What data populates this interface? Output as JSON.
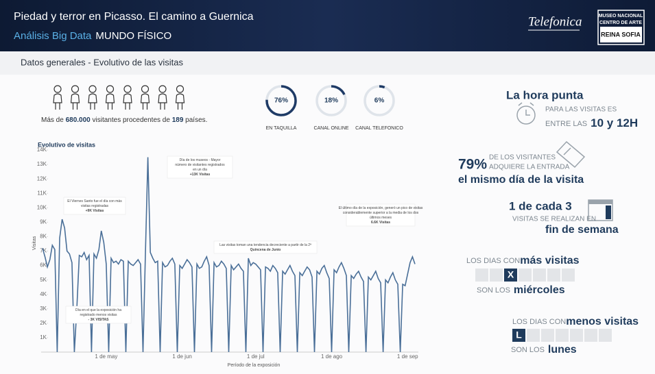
{
  "header": {
    "title": "Piedad y terror en Picasso. El camino a Guernica",
    "subtitle_label": "Análisis Big Data",
    "subtitle": "MUNDO FÍSICO",
    "logo_left": "Telefonica",
    "logo_right": [
      "MUSEO NACIONAL",
      "CENTRO DE ARTE",
      "REINA SOFIA"
    ]
  },
  "section_title": "Datos generales -  Evolutivo de las visitas",
  "visitors": [
    "Más de ",
    "680.000",
    " visitantes procedentes de ",
    "189",
    " países."
  ],
  "chart_data": [
    {
      "type": "line",
      "title": "Evolutivo de visitas",
      "y_label": "Visitas",
      "x_label": "Período de la exposición",
      "color": "#4a6f98",
      "grid": false,
      "ylim": [
        0,
        14000
      ],
      "yticks": [
        {
          "value": 1000,
          "label": "1K"
        },
        {
          "value": 2000,
          "label": "2K"
        },
        {
          "value": 3000,
          "label": "3K"
        },
        {
          "value": 4000,
          "label": "4K"
        },
        {
          "value": 5000,
          "label": "5K"
        },
        {
          "value": 6000,
          "label": "6K"
        },
        {
          "value": 7000,
          "label": "7K"
        },
        {
          "value": 8000,
          "label": "8K"
        },
        {
          "value": 9000,
          "label": "9K"
        },
        {
          "value": 10000,
          "label": "10K"
        },
        {
          "value": 11000,
          "label": "11K"
        },
        {
          "value": 12000,
          "label": "12K"
        },
        {
          "value": 13000,
          "label": "13K"
        },
        {
          "value": 14000,
          "label": "14K"
        }
      ],
      "categories": [
        null,
        null,
        null,
        null,
        null,
        null,
        null,
        null,
        null,
        null,
        null,
        null,
        null,
        null,
        null,
        null,
        null,
        null,
        null,
        null,
        null,
        null,
        null,
        null,
        null,
        null,
        "1 de may",
        null,
        null,
        null,
        null,
        null,
        null,
        null,
        null,
        null,
        null,
        null,
        null,
        null,
        null,
        null,
        null,
        null,
        null,
        null,
        null,
        null,
        null,
        null,
        null,
        null,
        null,
        null,
        null,
        null,
        null,
        "1 de jun",
        null,
        null,
        null,
        null,
        null,
        null,
        null,
        null,
        null,
        null,
        null,
        null,
        null,
        null,
        null,
        null,
        null,
        null,
        null,
        null,
        null,
        null,
        null,
        null,
        null,
        null,
        null,
        null,
        null,
        "1 de jul",
        null,
        null,
        null,
        null,
        null,
        null,
        null,
        null,
        null,
        null,
        null,
        null,
        null,
        null,
        null,
        null,
        null,
        null,
        null,
        null,
        null,
        null,
        null,
        null,
        null,
        null,
        null,
        null,
        null,
        null,
        "1 de ago",
        null,
        null,
        null,
        null,
        null,
        null,
        null,
        null,
        null,
        null,
        null,
        null,
        null,
        null,
        null,
        null,
        null,
        null,
        null,
        null,
        null,
        null,
        null,
        null,
        null,
        null,
        null,
        null,
        null,
        null,
        "1 de sep",
        null,
        null,
        null
      ],
      "values": [
        7200,
        6600,
        5900,
        6400,
        7400,
        7100,
        0,
        7900,
        9200,
        8600,
        7000,
        6800,
        6200,
        0,
        3000,
        6700,
        6600,
        6900,
        6400,
        6700,
        0,
        6800,
        6500,
        7100,
        8400,
        7600,
        6100,
        0,
        6500,
        6200,
        6300,
        6100,
        6400,
        6300,
        0,
        6300,
        6100,
        6000,
        6200,
        6400,
        6100,
        0,
        6800,
        13500,
        6900,
        6500,
        6200,
        6300,
        0,
        6200,
        5900,
        6000,
        6300,
        6500,
        6100,
        0,
        6000,
        5800,
        6100,
        6400,
        6200,
        5900,
        0,
        6100,
        5800,
        5900,
        6300,
        6600,
        6000,
        0,
        6200,
        5900,
        6000,
        6300,
        6100,
        5800,
        0,
        6000,
        5700,
        5900,
        6100,
        5800,
        5600,
        0,
        6500,
        6000,
        6200,
        6100,
        5900,
        5700,
        0,
        5900,
        5800,
        5600,
        6000,
        5800,
        5500,
        0,
        5600,
        5400,
        5700,
        6000,
        5600,
        5300,
        0,
        5500,
        5300,
        5600,
        5900,
        5700,
        5200,
        0,
        5600,
        5400,
        5800,
        6000,
        5500,
        5100,
        0,
        5700,
        5500,
        5900,
        6200,
        5800,
        5300,
        0,
        5300,
        5100,
        5400,
        5600,
        5200,
        4900,
        0,
        5200,
        5000,
        5300,
        5600,
        5100,
        4800,
        0,
        5000,
        4800,
        5200,
        5500,
        5000,
        4700,
        0,
        4700,
        4600,
        5400,
        6200,
        6600,
        6100
      ],
      "annotations": [
        [
          "El Viernes Santo fue el día con más",
          "visitas registradas",
          "+9K Visitas"
        ],
        [
          "Día de los museos - Mayor",
          "número de visitantes registrados",
          "en un día",
          "+13K Visitas"
        ],
        [
          "Día en el que la exposición ha",
          "registrado menos visitas",
          "- 3K VISITAS"
        ],
        [
          "Las visitas toman una tendencia decreciente a partir de la 2ª",
          "Quincena de Junio"
        ],
        [
          "El último día de la exposición, generó un pico de visitas",
          "considerablemente superior a la media de los dos",
          "últimos meses",
          "6.6K Visitas"
        ]
      ]
    },
    {
      "type": "donut",
      "categories": [
        "EN TAQUILLA",
        "CANAL ONLINE",
        "CANAL TELEFONICO"
      ],
      "values": [
        76,
        18,
        6
      ],
      "value_labels": [
        "76%",
        "18%",
        "6%"
      ],
      "color": "#1f3b66",
      "track_color": "#dfe4ea"
    }
  ],
  "highlights": {
    "peak": [
      "La hora punta",
      "PARA LAS VISITAS ES",
      "ENTRE LAS",
      "10 y 12H"
    ],
    "same_day": [
      "79%",
      "DE LOS VISITANTES",
      "ADQUIERE LA ENTRADA",
      "el mismo día de la visita"
    ],
    "weekend": [
      "1 de cada 3",
      "VISITAS SE REALIZAN EN",
      "fin de semana"
    ],
    "most": [
      "LOS DIAS CON",
      "más visitas",
      "X",
      "SON LOS",
      "miércoles"
    ],
    "least": [
      "LOS DIAS CON",
      "menos visitas",
      "L",
      "SON LOS",
      "lunes"
    ]
  }
}
